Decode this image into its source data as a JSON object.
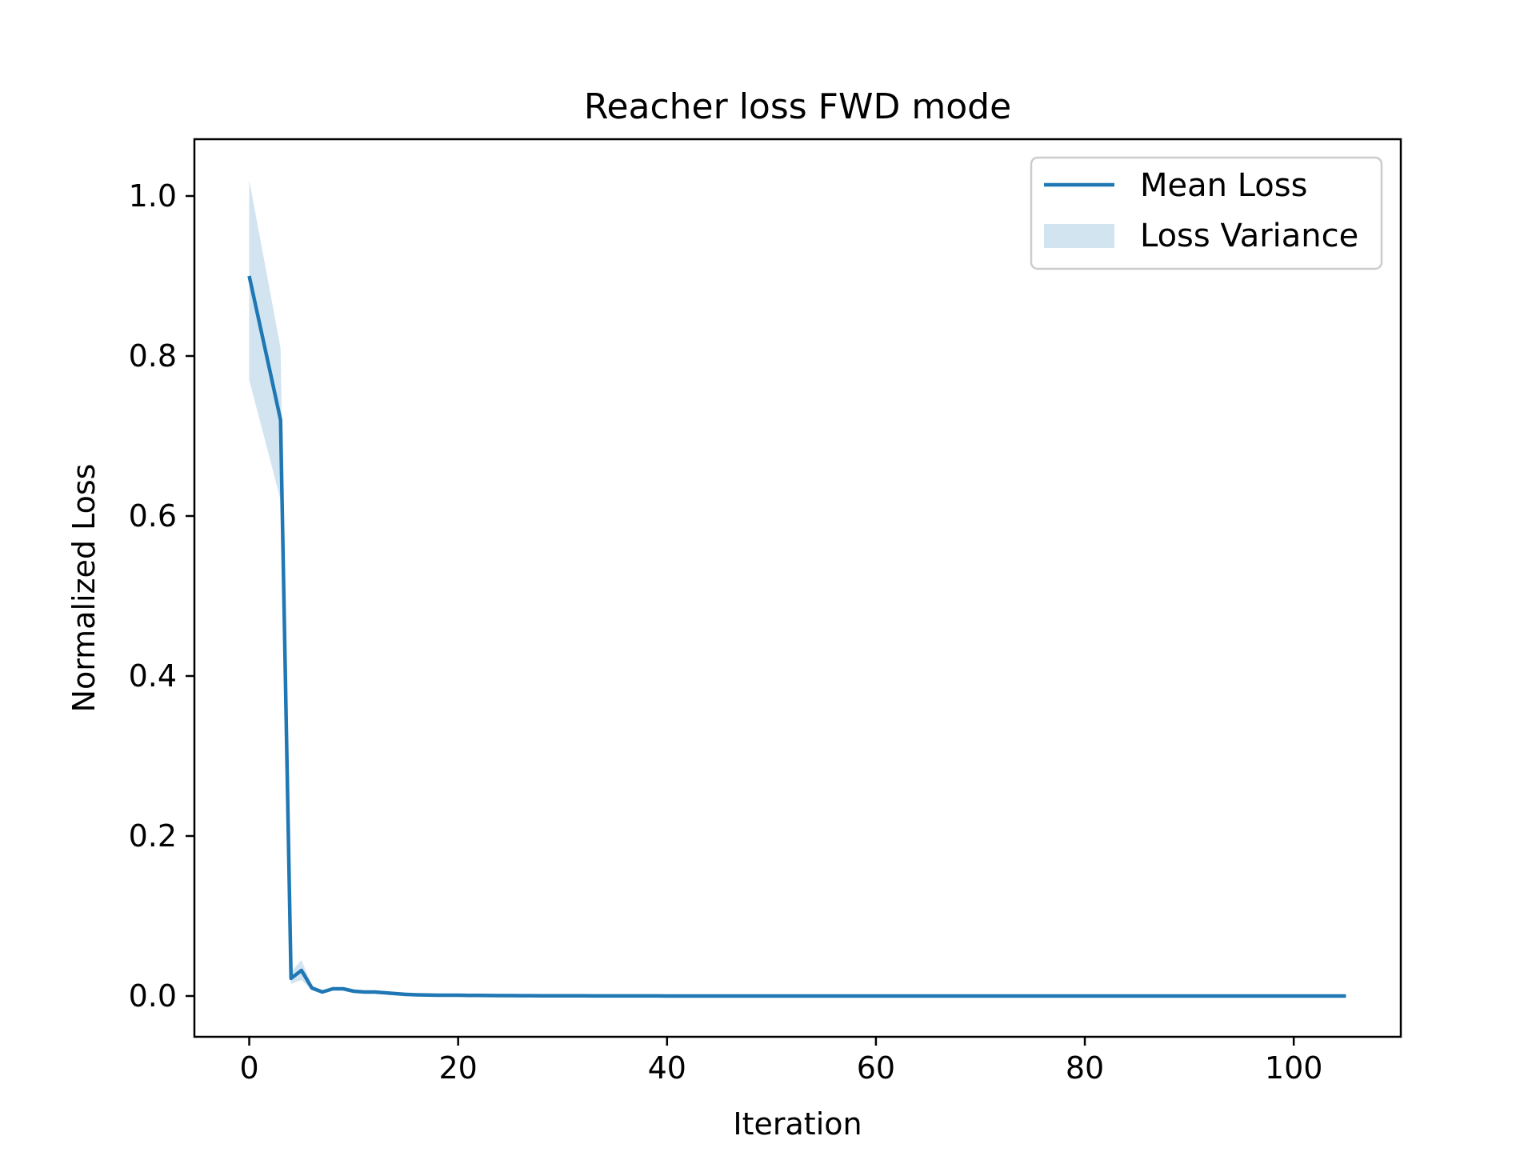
{
  "chart_data": {
    "type": "line",
    "title": "Reacher loss FWD mode",
    "xlabel": "Iteration",
    "ylabel": "Normalized Loss",
    "xlim": [
      -5.25,
      110.25
    ],
    "ylim": [
      -0.051,
      1.071
    ],
    "xticks": [
      0,
      20,
      40,
      60,
      80,
      100
    ],
    "xtick_labels": [
      "0",
      "20",
      "40",
      "60",
      "80",
      "100"
    ],
    "yticks": [
      0.0,
      0.2,
      0.4,
      0.6,
      0.8,
      1.0
    ],
    "ytick_labels": [
      "0.0",
      "0.2",
      "0.4",
      "0.6",
      "0.8",
      "1.0"
    ],
    "grid": false,
    "legend_position": "top-right",
    "series": [
      {
        "name": "Mean Loss",
        "color": "#1f77b4",
        "x": [
          0,
          1,
          2,
          3,
          4,
          5,
          6,
          7,
          8,
          9,
          10,
          11,
          12,
          13,
          14,
          15,
          16,
          17,
          18,
          19,
          20,
          21,
          22,
          23,
          24,
          25,
          26,
          27,
          28,
          29,
          30,
          31,
          32,
          33,
          34,
          35,
          36,
          37,
          38,
          39,
          40,
          41,
          42,
          43,
          44,
          45,
          46,
          47,
          48,
          49,
          50,
          51,
          52,
          53,
          54,
          55,
          56,
          57,
          58,
          59,
          60,
          61,
          62,
          63,
          64,
          65,
          66,
          67,
          68,
          69,
          70,
          71,
          72,
          73,
          74,
          75,
          76,
          77,
          78,
          79,
          80,
          81,
          82,
          83,
          84,
          85,
          86,
          87,
          88,
          89,
          90,
          91,
          92,
          93,
          94,
          95,
          96,
          97,
          98,
          99,
          100,
          101,
          102,
          103,
          104,
          105
        ],
        "y": [
          0.9,
          0.84,
          0.78,
          0.72,
          0.022,
          0.032,
          0.01,
          0.005,
          0.009,
          0.009,
          0.006,
          0.005,
          0.005,
          0.004,
          0.003,
          0.002,
          0.0015,
          0.0012,
          0.001,
          0.001,
          0.001,
          0.0008,
          0.0007,
          0.0006,
          0.0005,
          0.0005,
          0.0004,
          0.0004,
          0.0003,
          0.0003,
          0.0002,
          0.0002,
          0.0002,
          0.0001,
          0.0001,
          0.0001,
          0.0001,
          0.0001,
          0.0001,
          0.0001,
          0,
          0,
          0,
          0,
          0,
          0,
          0,
          0,
          0,
          0,
          0,
          0,
          0,
          0,
          0,
          0,
          0,
          0,
          0,
          0,
          0,
          0,
          0,
          0,
          0,
          0,
          0,
          0,
          0,
          0,
          0,
          0,
          0,
          0,
          0,
          0,
          0,
          0,
          0,
          0,
          0,
          0,
          0,
          0,
          0,
          0,
          0,
          0,
          0,
          0,
          0,
          0,
          0,
          0,
          0,
          0,
          0,
          0,
          0,
          0,
          0,
          0,
          0,
          0,
          0,
          0
        ]
      },
      {
        "name": "Loss Variance",
        "type": "area_band",
        "color": "#1f77b4",
        "opacity": 0.2,
        "x": [
          0,
          1,
          2,
          3,
          4,
          5,
          6,
          7,
          8,
          9,
          10,
          11,
          12,
          13,
          14,
          15,
          16,
          17,
          18,
          19,
          20
        ],
        "lower": [
          0.77,
          0.72,
          0.67,
          0.62,
          0.015,
          0.02,
          0.007,
          0.003,
          0.007,
          0.007,
          0.005,
          0.004,
          0.004,
          0.003,
          0.002,
          0.0015,
          0.001,
          0.001,
          0.0008,
          0.0008,
          0.0008
        ],
        "upper": [
          1.02,
          0.95,
          0.88,
          0.81,
          0.03,
          0.045,
          0.013,
          0.007,
          0.011,
          0.011,
          0.007,
          0.006,
          0.006,
          0.005,
          0.004,
          0.0025,
          0.002,
          0.0014,
          0.0012,
          0.0012,
          0.0012
        ]
      }
    ]
  }
}
